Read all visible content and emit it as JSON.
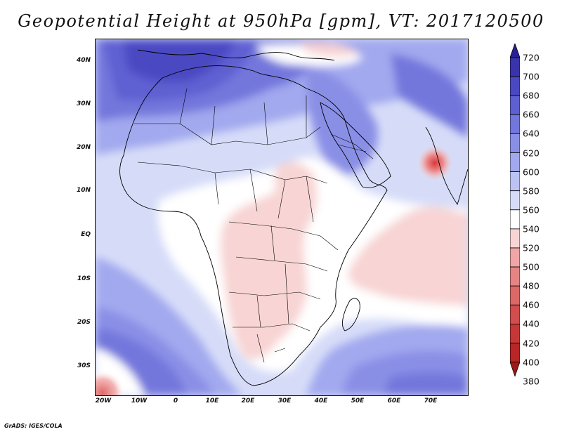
{
  "map": {
    "title": "Geopotential Height at 950hPa [gpm], VT: 2017120500",
    "variable": "Geopotential Height",
    "level": "950hPa",
    "units": "gpm",
    "valid_time": "2017120500",
    "region": "Africa, Arabian Peninsula, Arabian Sea"
  },
  "lat_labels": [
    "40N",
    "30N",
    "20N",
    "10N",
    "EQ",
    "10S",
    "20S",
    "30S"
  ],
  "lon_labels": [
    "20W",
    "10W",
    "0",
    "10E",
    "20E",
    "30E",
    "40E",
    "50E",
    "60E",
    "70E"
  ],
  "colorbar": {
    "levels": [
      380,
      400,
      420,
      440,
      460,
      480,
      500,
      520,
      540,
      560,
      580,
      600,
      620,
      640,
      660,
      680,
      700,
      720
    ],
    "labels": [
      "720",
      "700",
      "680",
      "660",
      "640",
      "620",
      "600",
      "580",
      "560",
      "540",
      "520",
      "500",
      "480",
      "460",
      "440",
      "420",
      "400",
      "380"
    ],
    "colors_low_to_high": [
      "#a01818",
      "#b82626",
      "#c63838",
      "#d24d4d",
      "#dc6868",
      "#e68484",
      "#f0a6a6",
      "#f8d4d4",
      "#ffffff",
      "#d6dcf8",
      "#bcc3f4",
      "#a2a9ee",
      "#8a8fe6",
      "#7377dc",
      "#5e60d2",
      "#4b49c2",
      "#3a34ac",
      "#2a2096"
    ]
  },
  "credit": "GrADS: IGES/COLA"
}
